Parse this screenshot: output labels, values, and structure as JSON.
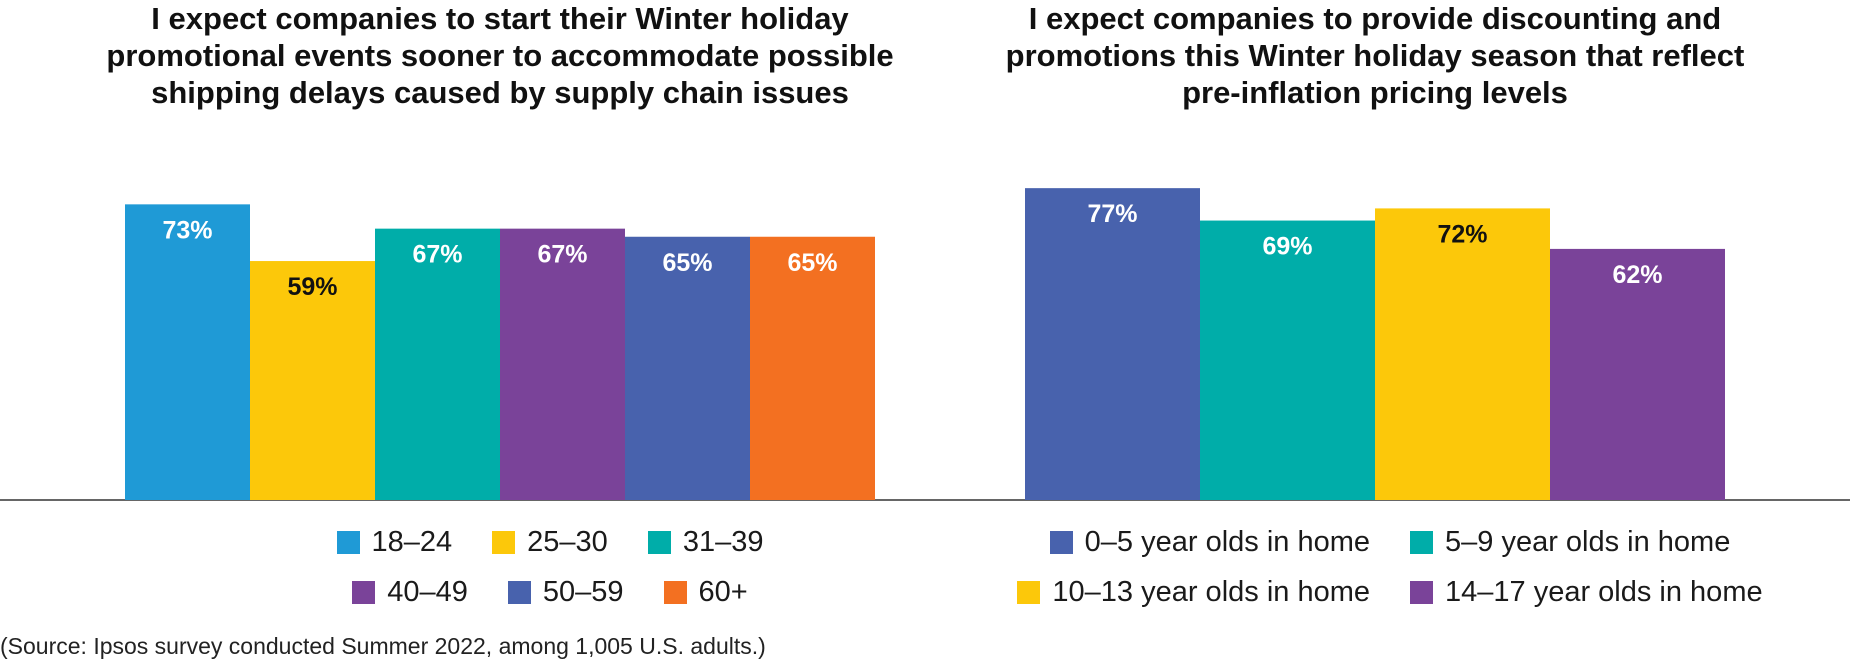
{
  "chart_data": [
    {
      "type": "bar",
      "title": "I expect companies to start their Winter holiday promotional events sooner to accommodate possible shipping delays caused by supply chain issues",
      "categories": [
        "18–24",
        "25–30",
        "31–39",
        "40–49",
        "50–59",
        "60+"
      ],
      "values": [
        73,
        59,
        67,
        67,
        65,
        65
      ],
      "value_labels": [
        "73%",
        "59%",
        "67%",
        "67%",
        "65%",
        "65%"
      ],
      "colors": [
        "#1f9ad6",
        "#fcc80a",
        "#00ada9",
        "#7a4399",
        "#4862ad",
        "#f37021"
      ],
      "label_colors": [
        "#ffffff",
        "#111111",
        "#ffffff",
        "#ffffff",
        "#ffffff",
        "#ffffff"
      ],
      "legend": [
        "18–24",
        "25–30",
        "31–39",
        "40–49",
        "50–59",
        "60+"
      ],
      "ylim": [
        0,
        100
      ],
      "xlabel": "",
      "ylabel": ""
    },
    {
      "type": "bar",
      "title": "I expect companies to provide discounting and promotions this Winter holiday season that reflect pre-inflation pricing levels",
      "categories": [
        "0–5 year olds in home",
        "5–9 year olds in home",
        "10–13 year olds in home",
        "14–17 year olds in home"
      ],
      "values": [
        77,
        69,
        72,
        62
      ],
      "value_labels": [
        "77%",
        "69%",
        "72%",
        "62%"
      ],
      "colors": [
        "#4862ad",
        "#00ada9",
        "#fcc80a",
        "#7a4399"
      ],
      "label_colors": [
        "#ffffff",
        "#ffffff",
        "#111111",
        "#ffffff"
      ],
      "legend": [
        "0–5 year olds in home",
        "5–9 year olds in home",
        "10–13 year olds in home",
        "14–17 year olds in home"
      ],
      "ylim": [
        0,
        100
      ],
      "xlabel": "",
      "ylabel": ""
    }
  ],
  "source": "(Source: Ipsos survey conducted Summer 2022, among 1,005 U.S. adults.)"
}
